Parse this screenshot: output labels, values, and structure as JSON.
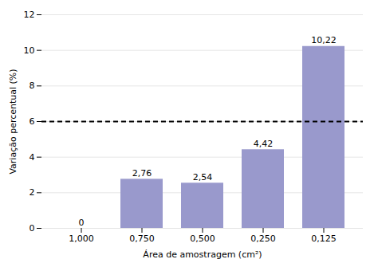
{
  "chart_data": {
    "type": "bar",
    "categories": [
      "1,000",
      "0,750",
      "0,500",
      "0,250",
      "0,125"
    ],
    "values": [
      0.0,
      2.76,
      2.54,
      4.42,
      10.22
    ],
    "value_labels": [
      "0",
      "2,76",
      "2,54",
      "4,42",
      "10,22"
    ],
    "data_labels": true,
    "color": "#9999cc",
    "xlabel": "Área de amostragem (cm²)",
    "ylabel": "Variação percentual (%)",
    "ylim": [
      0,
      12
    ],
    "yticks": [
      0,
      2,
      4,
      6,
      8,
      10,
      12
    ],
    "reference_line": 6.0,
    "grid": true
  }
}
